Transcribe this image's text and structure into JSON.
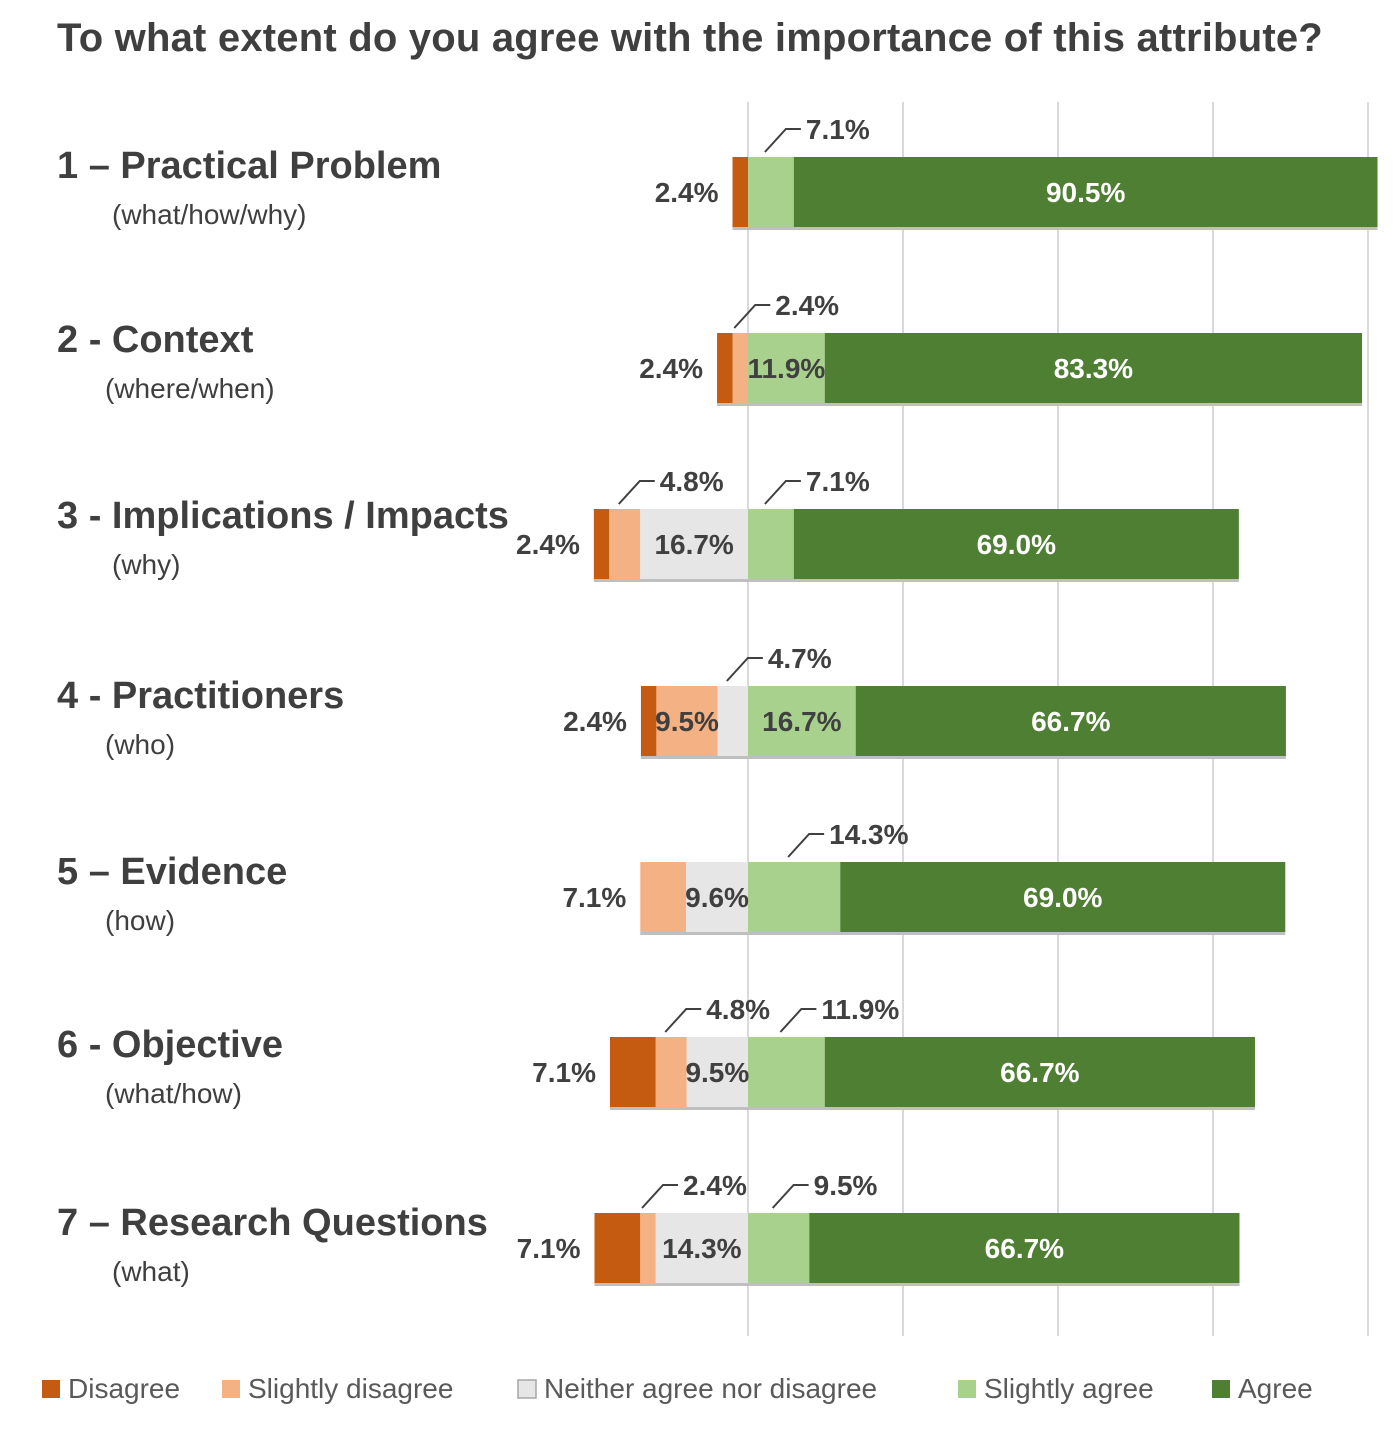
{
  "chart_data": {
    "type": "bar",
    "orientation": "horizontal",
    "stacked": true,
    "diverging": true,
    "title": "To what extent do you agree with the importance of this attribute?",
    "categories": [
      {
        "label": "1 – Practical Problem",
        "sub": "(what/how/why)"
      },
      {
        "label": "2 - Context",
        "sub": "(where/when)"
      },
      {
        "label": "3 - Implications / Impacts",
        "sub": "(why)"
      },
      {
        "label": "4 - Practitioners",
        "sub": "(who)"
      },
      {
        "label": "5 – Evidence",
        "sub": "(how)"
      },
      {
        "label": "6 - Objective",
        "sub": "(what/how)"
      },
      {
        "label": "7 – Research Questions",
        "sub": "(what)"
      }
    ],
    "series": [
      {
        "name": "Disagree",
        "color": "#c55a11",
        "values": [
          2.4,
          2.4,
          2.4,
          2.4,
          0,
          7.1,
          7.1
        ]
      },
      {
        "name": "Slightly disagree",
        "color": "#f4b183",
        "values": [
          0,
          2.4,
          4.8,
          9.5,
          7.1,
          4.8,
          2.4
        ]
      },
      {
        "name": "Neither agree nor disagree",
        "color": "#e7e6e6",
        "values": [
          0,
          0,
          16.7,
          4.7,
          9.6,
          9.5,
          14.3
        ]
      },
      {
        "name": "Slightly agree",
        "color": "#a9d18e",
        "values": [
          7.1,
          11.9,
          7.1,
          16.7,
          14.3,
          11.9,
          9.5
        ]
      },
      {
        "name": "Agree",
        "color": "#4f7f33",
        "values": [
          90.5,
          83.3,
          69.0,
          66.7,
          69.0,
          66.7,
          66.7
        ]
      }
    ],
    "data_labels": [
      {
        "left": "2.4%",
        "callouts": [
          "7.1%"
        ],
        "inside": [
          "90.5%"
        ]
      },
      {
        "left": "2.4%",
        "callouts": [
          "2.4%"
        ],
        "inside": [
          "11.9%",
          "83.3%"
        ]
      },
      {
        "left": "2.4%",
        "callouts": [
          "4.8%",
          "7.1%"
        ],
        "inside": [
          "16.7%",
          "69.0%"
        ]
      },
      {
        "left": "2.4%",
        "callouts": [
          "4.7%"
        ],
        "inside": [
          "9.5%",
          "16.7%",
          "66.7%"
        ]
      },
      {
        "left": "7.1%",
        "callouts": [
          "14.3%"
        ],
        "inside": [
          "9.6%",
          "69.0%"
        ]
      },
      {
        "left": "7.1%",
        "callouts": [
          "4.8%",
          "11.9%"
        ],
        "inside": [
          "9.5%",
          "66.7%"
        ]
      },
      {
        "left": "7.1%",
        "callouts": [
          "2.4%",
          "9.5%"
        ],
        "inside": [
          "14.3%",
          "66.7%"
        ]
      }
    ],
    "legend": {
      "position": "bottom",
      "items": [
        "Disagree",
        "Slightly disagree",
        "Neither agree nor disagree",
        "Slightly agree",
        "Agree"
      ]
    },
    "grid": true,
    "units": "%"
  }
}
